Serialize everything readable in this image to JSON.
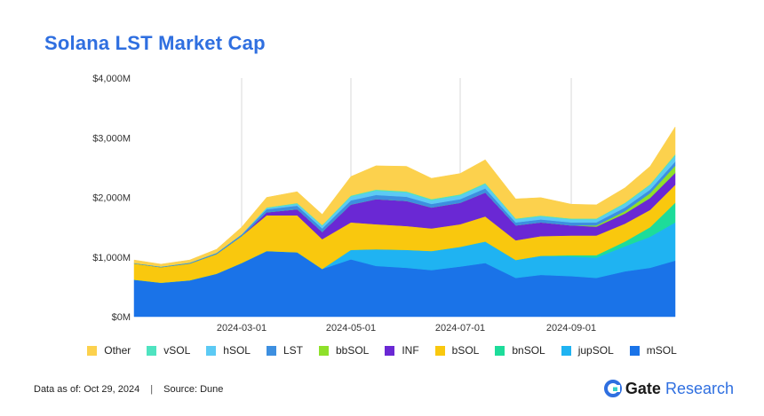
{
  "title": "Solana LST Market Cap",
  "footer": {
    "data_as_of": "Data as of: Oct 29, 2024",
    "separator": "|",
    "source": "Source: Dune"
  },
  "brand": {
    "name": "Gate",
    "suffix": "Research",
    "logo_icon": "gate-logo-icon",
    "color": "#2f6fe0"
  },
  "chart_data": {
    "type": "area",
    "stacked": true,
    "title": "Solana LST Market Cap",
    "xlabel": "",
    "ylabel": "",
    "ylim": [
      0,
      4000
    ],
    "yticks": [
      0,
      1000,
      2000,
      3000,
      4000
    ],
    "ytick_labels": [
      "$0M",
      "$1,000M",
      "$2,000M",
      "$3,000M",
      "$4,000M"
    ],
    "xtick_labels": [
      "2024-03-01",
      "2024-05-01",
      "2024-07-01",
      "2024-09-01"
    ],
    "xtick_dates": [
      "2024-03-01",
      "2024-05-01",
      "2024-07-01",
      "2024-09-01"
    ],
    "grid": "vertical",
    "legend_position": "bottom",
    "legend_order": [
      "Other",
      "vSOL",
      "hSOL",
      "LST",
      "bbSOL",
      "INF",
      "bSOL",
      "bnSOL",
      "jupSOL",
      "mSOL"
    ],
    "x": [
      "2024-01-01",
      "2024-01-16",
      "2024-02-01",
      "2024-02-16",
      "2024-03-01",
      "2024-03-15",
      "2024-04-01",
      "2024-04-15",
      "2024-05-01",
      "2024-05-15",
      "2024-06-01",
      "2024-06-15",
      "2024-07-01",
      "2024-07-15",
      "2024-08-01",
      "2024-08-15",
      "2024-09-01",
      "2024-09-15",
      "2024-10-01",
      "2024-10-15",
      "2024-10-29"
    ],
    "series": [
      {
        "name": "mSOL",
        "color": "#1a73e8",
        "values": [
          620,
          570,
          610,
          720,
          900,
          1100,
          1080,
          800,
          960,
          850,
          820,
          780,
          840,
          900,
          650,
          700,
          680,
          650,
          760,
          820,
          940
        ]
      },
      {
        "name": "jupSOL",
        "color": "#1fb3f2",
        "values": [
          0,
          0,
          0,
          0,
          0,
          0,
          0,
          0,
          160,
          280,
          300,
          320,
          330,
          360,
          300,
          320,
          330,
          340,
          420,
          520,
          640
        ]
      },
      {
        "name": "bnSOL",
        "color": "#1ddc9a",
        "values": [
          0,
          0,
          0,
          0,
          0,
          0,
          0,
          0,
          0,
          0,
          0,
          0,
          0,
          0,
          0,
          0,
          20,
          40,
          80,
          160,
          330
        ]
      },
      {
        "name": "bSOL",
        "color": "#f9c80e",
        "values": [
          270,
          260,
          280,
          330,
          450,
          600,
          620,
          500,
          460,
          420,
          400,
          380,
          380,
          420,
          330,
          330,
          330,
          330,
          300,
          290,
          300
        ]
      },
      {
        "name": "INF",
        "color": "#6a28d4",
        "values": [
          0,
          0,
          0,
          0,
          0,
          50,
          100,
          120,
          300,
          420,
          420,
          350,
          360,
          400,
          250,
          230,
          170,
          150,
          170,
          200,
          200
        ]
      },
      {
        "name": "bbSOL",
        "color": "#8ee02a",
        "values": [
          0,
          0,
          0,
          0,
          0,
          0,
          0,
          0,
          0,
          0,
          0,
          0,
          0,
          0,
          0,
          0,
          0,
          20,
          40,
          80,
          120
        ]
      },
      {
        "name": "LST",
        "color": "#3d8fe0",
        "values": [
          10,
          10,
          15,
          20,
          30,
          50,
          60,
          60,
          70,
          70,
          70,
          60,
          60,
          70,
          50,
          50,
          50,
          50,
          60,
          60,
          70
        ]
      },
      {
        "name": "hSOL",
        "color": "#5ccaf4",
        "values": [
          0,
          0,
          0,
          0,
          0,
          20,
          30,
          40,
          60,
          70,
          70,
          60,
          60,
          70,
          50,
          50,
          50,
          50,
          60,
          70,
          90
        ]
      },
      {
        "name": "vSOL",
        "color": "#4fe3c0",
        "values": [
          0,
          0,
          0,
          0,
          0,
          10,
          15,
          15,
          20,
          20,
          20,
          20,
          20,
          20,
          15,
          15,
          15,
          15,
          20,
          20,
          30
        ]
      },
      {
        "name": "Other",
        "color": "#fcd14d",
        "values": [
          50,
          40,
          45,
          60,
          120,
          170,
          190,
          180,
          320,
          400,
          420,
          350,
          350,
          390,
          330,
          300,
          240,
          230,
          250,
          300,
          460
        ]
      }
    ]
  }
}
